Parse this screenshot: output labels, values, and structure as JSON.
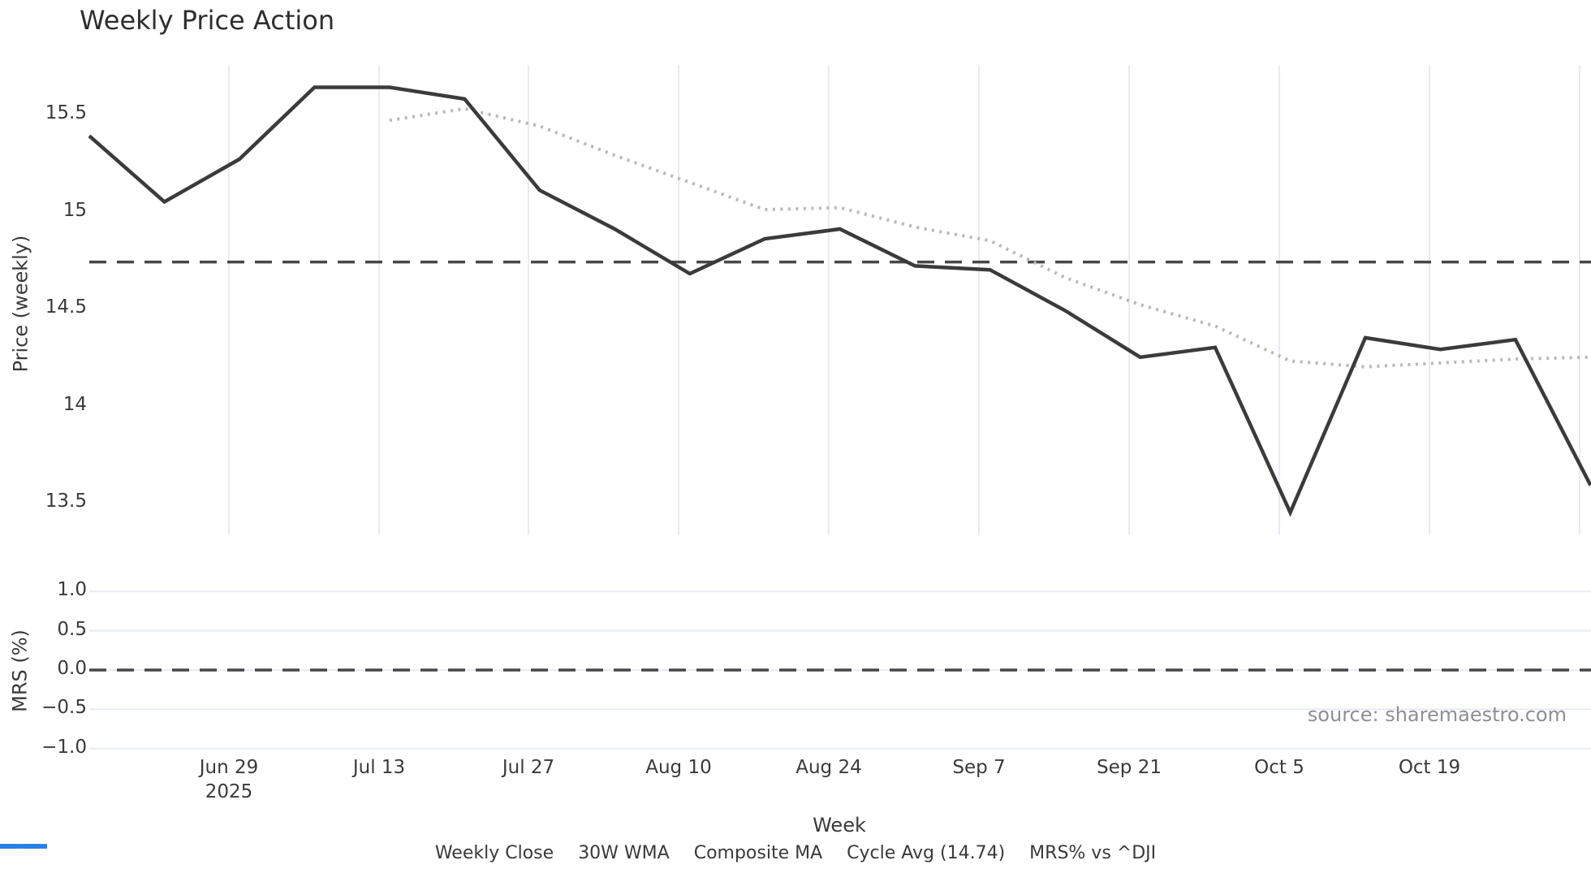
{
  "title": "Weekly Price Action",
  "source": "source: sharemaestro.com",
  "price_axis": {
    "label": "Price (weekly)",
    "ticks": [
      "15.5",
      "15",
      "14.5",
      "14",
      "13.5"
    ],
    "tick_values": [
      15.5,
      15.0,
      14.5,
      14.0,
      13.5
    ]
  },
  "mrs_axis": {
    "label": "MRS (%)",
    "ticks": [
      "1.0",
      "0.5",
      "0.0",
      "−0.5",
      "−1.0"
    ],
    "tick_values": [
      1.0,
      0.5,
      0.0,
      -0.5,
      -1.0
    ]
  },
  "x_axis": {
    "label": "Week",
    "ticks": [
      {
        "label": "Jun 29",
        "year": "2025"
      },
      {
        "label": "Jul 13"
      },
      {
        "label": "Jul 27"
      },
      {
        "label": "Aug 10"
      },
      {
        "label": "Aug 24"
      },
      {
        "label": "Sep 7"
      },
      {
        "label": "Sep 21"
      },
      {
        "label": "Oct 5"
      },
      {
        "label": "Oct 19"
      }
    ]
  },
  "legend": {
    "items": [
      {
        "label": "Weekly Close",
        "style": "solid",
        "color": "#3b3b3b"
      },
      {
        "label": "30W WMA",
        "style": "solid",
        "color": "#d5a021"
      },
      {
        "label": "Composite MA",
        "style": "dotted",
        "color": "#b9b9b9"
      },
      {
        "label": "Cycle Avg (14.74)",
        "style": "dashed",
        "color": "#4a4a4a"
      },
      {
        "label": "MRS% vs ^DJI",
        "style": "solid",
        "color": "#2080ef"
      }
    ]
  },
  "colors": {
    "close_line": "#3b3b3b",
    "composite_ma": "#b9b9b9",
    "cycle_avg": "#474747",
    "wma_30w": "#d5a021",
    "mrs_blue": "#2080ef",
    "gridline": "#e8ebf4",
    "tick_text": "#3a3a3a",
    "source_text": "#8f8f8f"
  },
  "chart_data": {
    "type": "line",
    "title": "Weekly Price Action",
    "xlabel": "Week",
    "ylabel": "Price (weekly)",
    "ylabel_sub": "MRS (%)",
    "x": [
      "Jun 16",
      "Jun 23",
      "Jun 30",
      "Jul 7",
      "Jul 14",
      "Jul 21",
      "Jul 28",
      "Aug 4",
      "Aug 11",
      "Aug 18",
      "Aug 25",
      "Sep 1",
      "Sep 8",
      "Sep 15",
      "Sep 22",
      "Sep 29",
      "Oct 6",
      "Oct 13",
      "Oct 20",
      "Oct 27",
      "Nov 3"
    ],
    "x_tick_labels": [
      "Jun 29 2025",
      "Jul 13",
      "Jul 27",
      "Aug 10",
      "Aug 24",
      "Sep 7",
      "Sep 21",
      "Oct 5",
      "Oct 19"
    ],
    "ylim": [
      13.33,
      15.76
    ],
    "ylim_sub": [
      -1.25,
      1.3
    ],
    "grid": true,
    "legend_position": "bottom",
    "series": [
      {
        "name": "Weekly Close",
        "style": "solid",
        "color": "#3b3b3b",
        "panel": "price",
        "values": [
          15.39,
          15.05,
          15.27,
          15.64,
          15.64,
          15.58,
          15.11,
          14.91,
          14.68,
          14.86,
          14.91,
          14.72,
          14.7,
          14.49,
          14.25,
          14.3,
          13.45,
          14.35,
          14.29,
          14.34,
          13.59
        ]
      },
      {
        "name": "Composite MA",
        "style": "dotted",
        "color": "#b9b9b9",
        "panel": "price",
        "values": [
          null,
          null,
          null,
          null,
          15.47,
          15.53,
          15.44,
          15.29,
          15.15,
          15.01,
          15.02,
          14.92,
          14.85,
          14.66,
          14.52,
          14.41,
          14.23,
          14.2,
          14.22,
          14.24,
          14.25
        ]
      },
      {
        "name": "Cycle Avg",
        "style": "dashed",
        "color": "#474747",
        "panel": "price",
        "constant": 14.74
      },
      {
        "name": "30W WMA",
        "style": "solid",
        "color": "#d5a021",
        "panel": "price",
        "values": []
      },
      {
        "name": "MRS% vs ^DJI",
        "style": "solid",
        "color": "#2080ef",
        "panel": "mrs",
        "constant_zero_line": 0.0,
        "values": []
      }
    ]
  }
}
